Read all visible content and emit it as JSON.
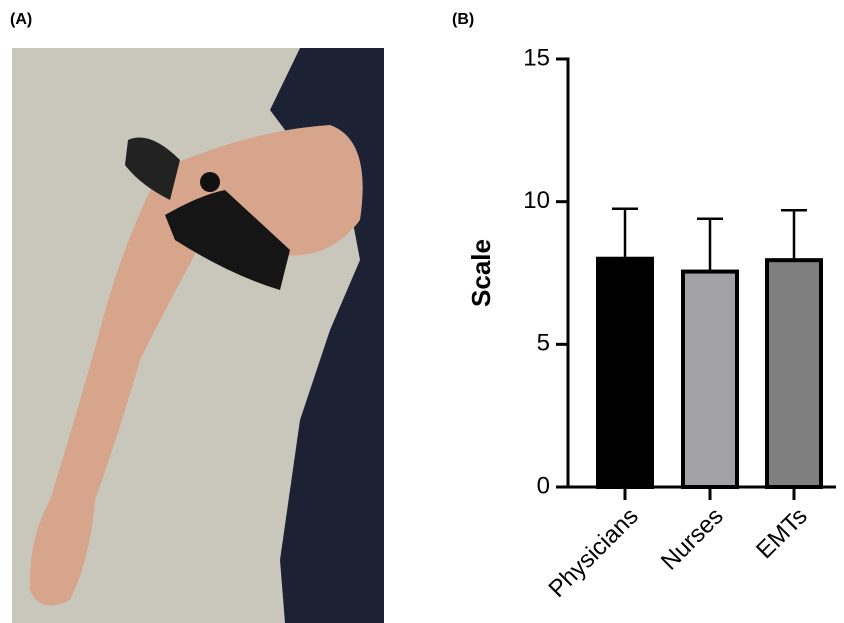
{
  "panel_labels": [
    "(A)",
    "(B)"
  ],
  "chart_data": {
    "type": "bar",
    "y_label": "Scale",
    "categories": [
      "Physicians",
      "Nurses",
      "EMTs"
    ],
    "values": [
      8.0,
      7.55,
      7.95
    ],
    "errors": [
      1.75,
      1.85,
      1.75
    ],
    "colors": [
      "#000000",
      "#a2a2a6",
      "#7f7f7f"
    ],
    "ylim": [
      0,
      15
    ],
    "yticks": [
      0,
      5,
      10,
      15
    ]
  }
}
